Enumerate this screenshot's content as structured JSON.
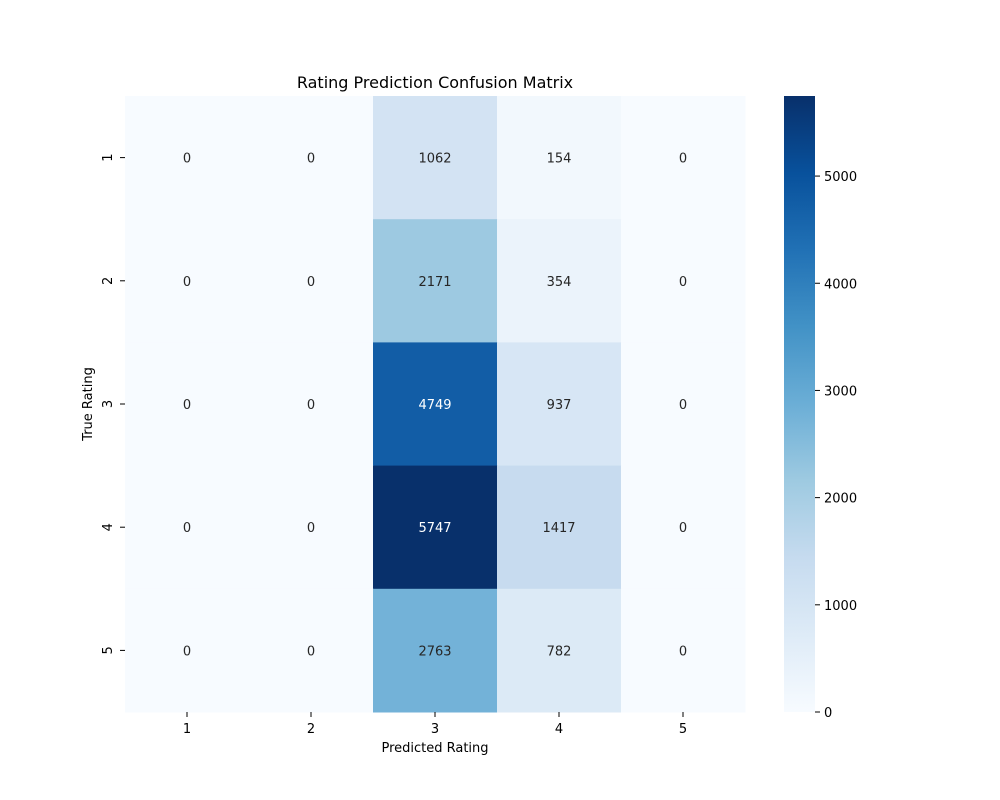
{
  "chart_data": {
    "type": "heatmap",
    "title": "Rating Prediction Confusion Matrix",
    "xlabel": "Predicted Rating",
    "ylabel": "True Rating",
    "x_categories": [
      "1",
      "2",
      "3",
      "4",
      "5"
    ],
    "y_categories": [
      "1",
      "2",
      "3",
      "4",
      "5"
    ],
    "values": [
      [
        0,
        0,
        1062,
        154,
        0
      ],
      [
        0,
        0,
        2171,
        354,
        0
      ],
      [
        0,
        0,
        4749,
        937,
        0
      ],
      [
        0,
        0,
        5747,
        1417,
        0
      ],
      [
        0,
        0,
        2763,
        782,
        0
      ]
    ],
    "colormap": "Blues",
    "colorbar": {
      "range": [
        0,
        5747
      ],
      "ticks": [
        "0",
        "1000",
        "2000",
        "3000",
        "4000",
        "5000"
      ]
    },
    "grid": false
  }
}
